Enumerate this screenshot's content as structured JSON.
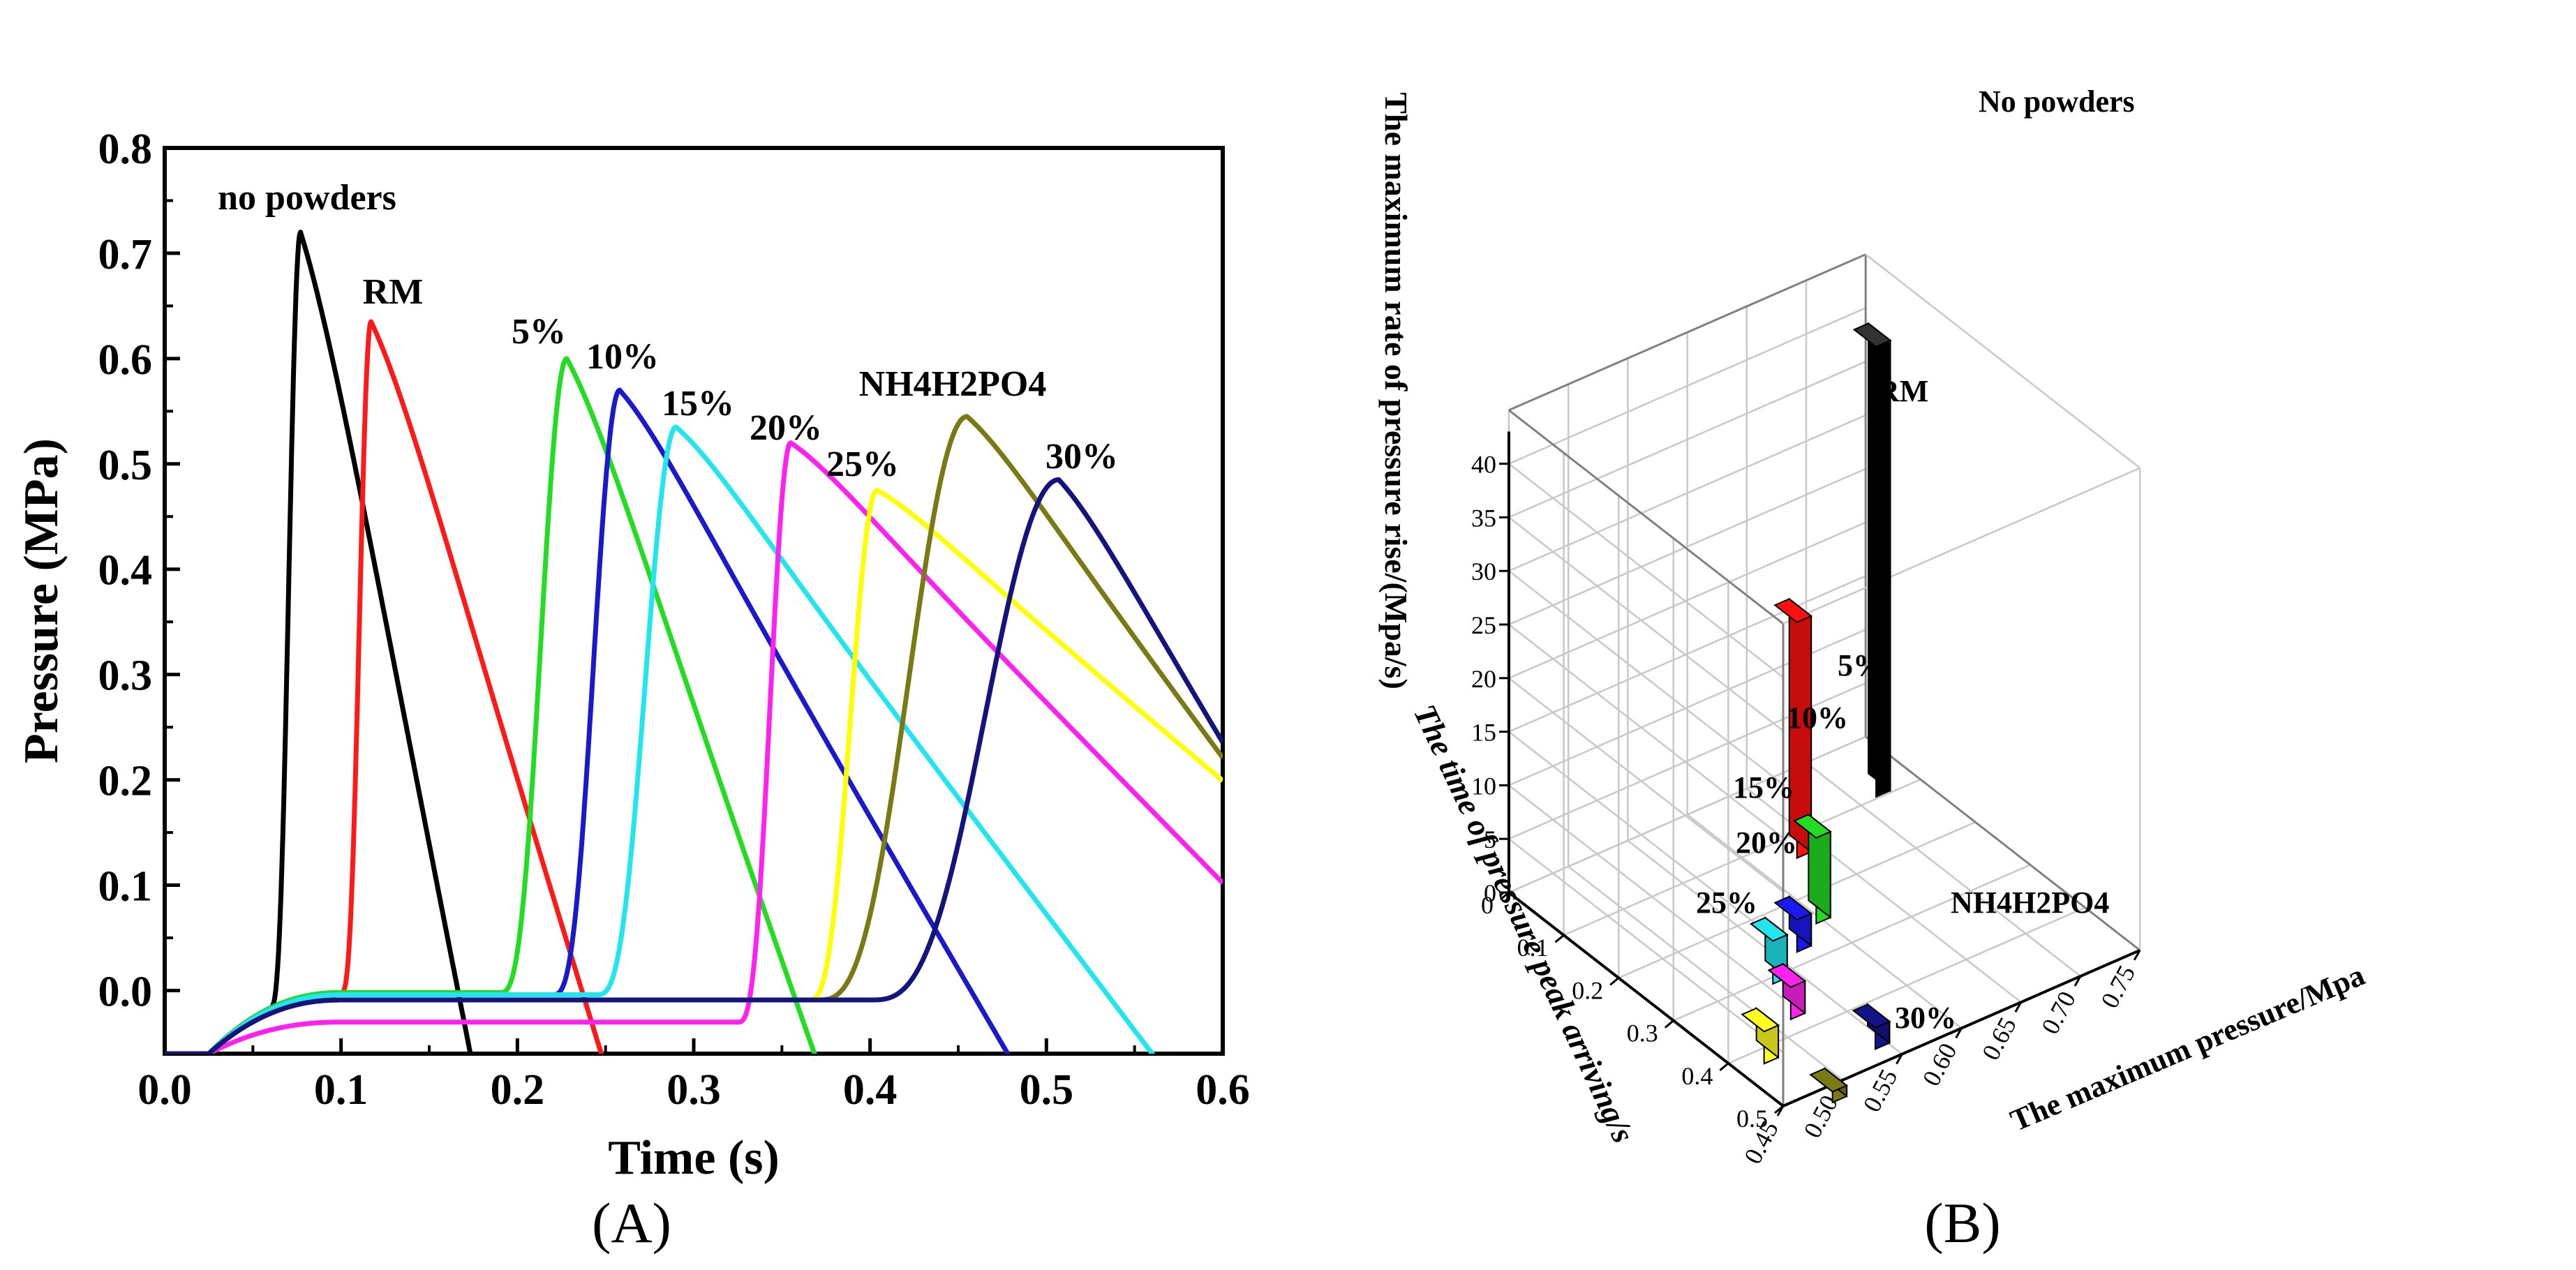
{
  "chart_data": [
    {
      "type": "line",
      "panel": "A",
      "caption": "(A)",
      "xlabel": "Time (s)",
      "ylabel": "Pressure (MPa)",
      "xlim": [
        0.0,
        0.6
      ],
      "ylim": [
        -0.06,
        0.8
      ],
      "xticks": [
        "0.0",
        "0.1",
        "0.2",
        "0.3",
        "0.4",
        "0.5",
        "0.6"
      ],
      "yticks": [
        "0.0",
        "0.1",
        "0.2",
        "0.3",
        "0.4",
        "0.5",
        "0.6",
        "0.7",
        "0.8"
      ],
      "series": [
        {
          "name": "no powders",
          "color": "#000000",
          "onset": 0.06,
          "peak_t": 0.077,
          "peak_p": 0.72,
          "base": -0.002,
          "decay": 0.095,
          "label": "no powders"
        },
        {
          "name": "RM",
          "color": "#ff1a1a",
          "onset": 0.1,
          "peak_t": 0.117,
          "peak_p": 0.635,
          "base": -0.002,
          "decay": 0.13,
          "label": "RM"
        },
        {
          "name": "5%",
          "color": "#22dd22",
          "onset": 0.19,
          "peak_t": 0.228,
          "peak_p": 0.6,
          "base": -0.002,
          "decay": 0.14,
          "label": "5%"
        },
        {
          "name": "10%",
          "color": "#1a1acc",
          "onset": 0.22,
          "peak_t": 0.258,
          "peak_p": 0.57,
          "base": -0.004,
          "decay": 0.22,
          "label": "10%"
        },
        {
          "name": "15%",
          "color": "#22e6ee",
          "onset": 0.245,
          "peak_t": 0.29,
          "peak_p": 0.535,
          "base": -0.004,
          "decay": 0.27,
          "label": "15%"
        },
        {
          "name": "20%",
          "color": "#ff22ee",
          "onset": 0.325,
          "peak_t": 0.355,
          "peak_p": 0.52,
          "base": -0.03,
          "decay": 0.34,
          "label": "20%"
        },
        {
          "name": "25%",
          "color": "#ffff00",
          "onset": 0.365,
          "peak_t": 0.404,
          "peak_p": 0.475,
          "base": -0.009,
          "decay": 0.38,
          "label": "25%"
        },
        {
          "name": "NH4H2PO4",
          "color": "#7a7a14",
          "onset": 0.37,
          "peak_t": 0.455,
          "peak_p": 0.545,
          "base": -0.009,
          "decay": 0.27,
          "label": "NH4H2PO4"
        },
        {
          "name": "30%",
          "color": "#14147f",
          "onset": 0.4,
          "peak_t": 0.507,
          "peak_p": 0.485,
          "base": -0.009,
          "decay": 0.2,
          "label": "30%"
        }
      ]
    },
    {
      "type": "bar3d",
      "panel": "B",
      "caption": "(B)",
      "x_axis_label": "The maximum pressure/Mpa",
      "y_axis_label": "The time of pressure peak arriving/s",
      "z_axis_label": "The maximum rate of pressure rise/(Mpa/s)",
      "x_ticks": [
        "0.45",
        "0.50",
        "0.55",
        "0.60",
        "0.65",
        "0.70",
        "0.75"
      ],
      "y_ticks": [
        "0",
        "0.1",
        "0.2",
        "0.3",
        "0.4",
        "0.5"
      ],
      "z_ticks": [
        "0",
        "5",
        "10",
        "15",
        "20",
        "25",
        "30",
        "35",
        "40"
      ],
      "bars": [
        {
          "name": "No powders",
          "pressure": 0.72,
          "time": 0.077,
          "rate": 42,
          "color": "#000000"
        },
        {
          "name": "RM",
          "pressure": 0.635,
          "time": 0.117,
          "rate": 22,
          "color": "#ff1010"
        },
        {
          "name": "5%",
          "pressure": 0.6,
          "time": 0.228,
          "rate": 8,
          "color": "#22dd22"
        },
        {
          "name": "10%",
          "pressure": 0.57,
          "time": 0.258,
          "rate": 3,
          "color": "#1a1aee"
        },
        {
          "name": "15%",
          "pressure": 0.535,
          "time": 0.29,
          "rate": 4,
          "color": "#22e6ee"
        },
        {
          "name": "20%",
          "pressure": 0.52,
          "time": 0.355,
          "rate": 3,
          "color": "#ff22ee"
        },
        {
          "name": "25%",
          "pressure": 0.475,
          "time": 0.404,
          "rate": 3,
          "color": "#ffff22"
        },
        {
          "name": "NH4H2PO4",
          "pressure": 0.545,
          "time": 0.455,
          "rate": 2,
          "color": "#14148a"
        },
        {
          "name": "30%",
          "pressure": 0.485,
          "time": 0.507,
          "rate": 1,
          "color": "#7a7a14"
        }
      ]
    }
  ]
}
